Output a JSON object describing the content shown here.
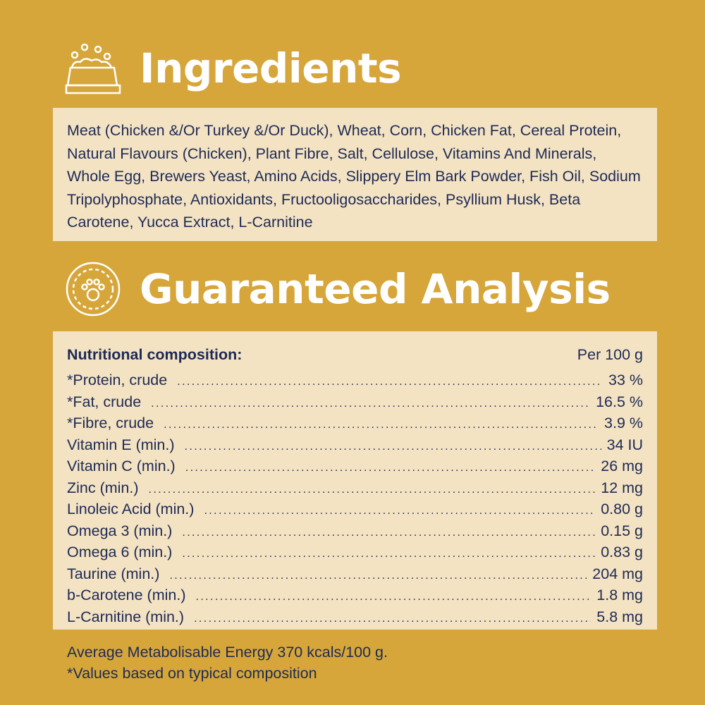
{
  "colors": {
    "background": "#D6A63A",
    "panel": "#F3E3C3",
    "text": "#1E2A55",
    "heading": "#FFFFFF"
  },
  "ingredients": {
    "icon": "food-bowl-icon",
    "title": "Ingredients",
    "text": "Meat (Chicken &/Or Turkey &/Or Duck), Wheat, Corn, Chicken Fat, Cereal Protein, Natural Flavours (Chicken), Plant Fibre, Salt, Cellulose, Vitamins And Minerals, Whole Egg, Brewers Yeast, Amino Acids, Slippery Elm Bark Powder, Fish Oil, Sodium Tripolyphosphate, Antioxidants, Fructooligosaccharides, Psyllium Husk, Beta Carotene, Yucca Extract, L-Carnitine"
  },
  "analysis": {
    "icon": "paw-badge-icon",
    "title": "Guaranteed Analysis",
    "header_label": "Nutritional composition:",
    "header_unit": "Per 100 g",
    "rows": [
      {
        "label": "*Protein, crude",
        "value": "33 %"
      },
      {
        "label": "*Fat, crude",
        "value": "16.5 %"
      },
      {
        "label": "*Fibre, crude",
        "value": "3.9 %"
      },
      {
        "label": "Vitamin E (min.)",
        "value": "34 IU"
      },
      {
        "label": "Vitamin C (min.)",
        "value": "26 mg"
      },
      {
        "label": "Zinc (min.)",
        "value": "12 mg"
      },
      {
        "label": "Linoleic Acid (min.)",
        "value": "0.80 g"
      },
      {
        "label": "Omega 3 (min.)",
        "value": "0.15 g"
      },
      {
        "label": "Omega 6 (min.)",
        "value": "0.83 g"
      },
      {
        "label": "Taurine (min.)",
        "value": "204 mg"
      },
      {
        "label": "b-Carotene (min.)",
        "value": "1.8 mg"
      },
      {
        "label": "L-Carnitine (min.)",
        "value": "5.8 mg"
      }
    ]
  },
  "footer": {
    "energy": "Average Metabolisable Energy 370 kcals/100 g.",
    "note": "*Values based on typical composition"
  }
}
